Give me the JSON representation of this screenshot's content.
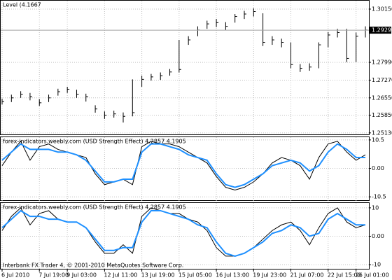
{
  "chart_data": [
    {
      "type": "ohlc",
      "title": "Level (4.1667",
      "high": [
        1.2652,
        1.2668,
        1.2682,
        1.2675,
        1.265,
        1.2668,
        1.2692,
        1.27,
        1.2688,
        1.2672,
        1.2625,
        1.26,
        1.2603,
        1.2596,
        1.273,
        1.2745,
        1.2752,
        1.2758,
        1.2772,
        1.289,
        1.2905,
        1.2945,
        1.2968,
        1.2975,
        1.2962,
        1.2995,
        1.3008,
        1.3018,
        1.2998,
        1.2905,
        1.2895,
        1.288,
        1.2792,
        1.2795,
        1.288,
        1.2922,
        1.2935,
        1.2935,
        1.292,
        1.2945
      ],
      "low": [
        1.2628,
        1.2638,
        1.2655,
        1.2645,
        1.2622,
        1.2638,
        1.2664,
        1.2675,
        1.2655,
        1.264,
        1.2595,
        1.257,
        1.2575,
        1.2555,
        1.258,
        1.27,
        1.2725,
        1.2728,
        1.2745,
        1.2758,
        1.287,
        1.2905,
        1.2935,
        1.2942,
        1.293,
        1.296,
        1.2975,
        1.2985,
        1.2865,
        1.287,
        1.286,
        1.2775,
        1.276,
        1.2765,
        1.2775,
        1.286,
        1.29,
        1.28,
        1.28,
        1.29
      ],
      "close": [
        1.264,
        1.2655,
        1.267,
        1.266,
        1.2635,
        1.2655,
        1.268,
        1.269,
        1.267,
        1.266,
        1.261,
        1.2585,
        1.259,
        1.258,
        1.2595,
        1.273,
        1.274,
        1.2745,
        1.276,
        1.277,
        1.289,
        1.293,
        1.2955,
        1.296,
        1.2945,
        1.2985,
        1.2995,
        1.3005,
        1.288,
        1.289,
        1.288,
        1.279,
        1.2775,
        1.278,
        1.287,
        1.291,
        1.292,
        1.2815,
        1.2905,
        1.293
      ],
      "color": "#000000",
      "ylim": [
        1.2504,
        1.3049
      ],
      "yticks": [
        {
          "value": 1.2513,
          "label": "1.25130"
        },
        {
          "value": 1.2585,
          "label": "1.25850"
        },
        {
          "value": 1.2655,
          "label": "1.26550"
        },
        {
          "value": 1.2727,
          "label": "1.27270"
        },
        {
          "value": 1.2799,
          "label": "1.27990"
        },
        {
          "value": 1.3015,
          "label": "1.30150"
        }
      ],
      "last_price": {
        "value": 1.29295,
        "label": "1.29295"
      },
      "grid": true
    },
    {
      "type": "line",
      "title": "forex-indicators.weebly.com (USD Strength Effect) 4.2857 4.1905",
      "series": [
        {
          "color": "#000000",
          "values": [
            1,
            6,
            10,
            3,
            8,
            9,
            7,
            6,
            5,
            4,
            -2,
            -6,
            -5,
            -4,
            -6,
            8,
            10,
            9,
            9,
            8,
            6,
            4,
            2,
            -3,
            -7,
            -8,
            -7,
            -5,
            -2,
            2,
            4,
            3,
            1,
            -4,
            4,
            9,
            10,
            6,
            3,
            5
          ]
        },
        {
          "color": "#1e90ff",
          "values": [
            3,
            6,
            9,
            7,
            7,
            7,
            6,
            6,
            5,
            3,
            -1,
            -5,
            -5,
            -4,
            -4,
            6,
            9,
            9,
            8,
            7,
            5,
            4,
            3,
            -2,
            -6,
            -7,
            -6,
            -4,
            -2,
            1,
            2,
            3,
            2,
            -1,
            1,
            6,
            9,
            7,
            4,
            4
          ]
        }
      ],
      "ylim": [
        -12,
        11.5
      ],
      "yticks": [
        -10.5,
        {
          "value": 0,
          "label": "0.00"
        },
        10.5
      ],
      "grid": true
    },
    {
      "type": "line",
      "title": "forex-indicators.weebly.com (USD Strength Effect) 4.2857 4.1905",
      "annotation": "Interbank FX Trader 4, © 2001-2010 MetaQuotes Software Corp.",
      "categories": [
        "6 Jul 2010",
        null,
        null,
        null,
        "7 Jul 19:00",
        null,
        null,
        "9 Jul 03:00",
        null,
        null,
        null,
        "12 Jul 11:00",
        null,
        null,
        null,
        "13 Jul 19:00",
        null,
        null,
        null,
        "15 Jul 05:00",
        null,
        null,
        null,
        "16 Jul 13:00",
        null,
        null,
        null,
        "19 Jul 23:00",
        null,
        null,
        null,
        "21 Jul 07:00",
        null,
        null,
        null,
        "22 Jul 15:00",
        null,
        null,
        "26 Jul 01:00",
        null
      ],
      "series": [
        {
          "color": "#000000",
          "values": [
            2,
            7,
            10,
            4,
            8,
            9,
            6,
            5,
            5,
            3,
            -2,
            -6,
            -6,
            -3,
            -6,
            7,
            10,
            9,
            8,
            8,
            6,
            5,
            2,
            -4,
            -7,
            -7,
            -6,
            -4,
            -1,
            2,
            4,
            5,
            2,
            -3,
            3,
            8,
            10,
            5,
            3,
            4
          ]
        },
        {
          "color": "#1e90ff",
          "values": [
            3,
            6,
            9,
            7,
            7,
            6,
            6,
            5,
            5,
            3,
            -1,
            -5,
            -5,
            -4,
            -4,
            5,
            9,
            9,
            8,
            7,
            6,
            4,
            3,
            -2,
            -6,
            -7,
            -6,
            -4,
            -2,
            1,
            2,
            4,
            3,
            0,
            1,
            6,
            8,
            6,
            4,
            4
          ]
        }
      ],
      "ylim": [
        -11.7,
        11.7
      ],
      "yticks": [
        -10,
        {
          "value": 0,
          "label": "0.00"
        },
        10
      ],
      "grid": true
    }
  ]
}
